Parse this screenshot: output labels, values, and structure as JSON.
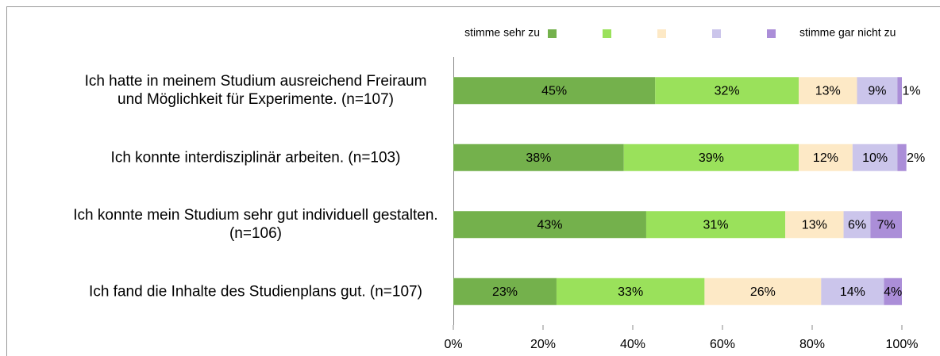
{
  "chart_data": {
    "type": "stacked_barh",
    "categories": [
      "Ich hatte in meinem Studium ausreichend Freiraum und Möglichkeit für Experimente. (n=107)",
      "Ich konnte interdisziplinär arbeiten. (n=103)",
      "Ich konnte mein Studium sehr gut individuell gestalten. (n=106)",
      "Ich fand die Inhalte des Studienplans gut. (n=107)"
    ],
    "series": [
      {
        "name": "stimme sehr zu",
        "color": "#74b14c",
        "values": [
          45,
          38,
          43,
          23
        ],
        "value_labels": [
          "45%",
          "38%",
          "43%",
          "23%"
        ]
      },
      {
        "color": "#9ae15b",
        "values": [
          32,
          39,
          31,
          33
        ],
        "value_labels": [
          "32%",
          "39%",
          "31%",
          "33%"
        ]
      },
      {
        "color": "#fde9c6",
        "values": [
          13,
          12,
          13,
          26
        ],
        "value_labels": [
          "13%",
          "12%",
          "13%",
          "26%"
        ]
      },
      {
        "color": "#cbc5eb",
        "values": [
          9,
          10,
          6,
          14
        ],
        "value_labels": [
          "9%",
          "10%",
          "6%",
          "14%"
        ]
      },
      {
        "name": "stimme gar nicht zu",
        "color": "#ab8ed8",
        "values": [
          1,
          2,
          7,
          4
        ],
        "value_labels": [
          "1%",
          "2%",
          "7%",
          "4%"
        ]
      }
    ],
    "xlim": [
      0,
      100
    ],
    "xticks": [
      {
        "value": 0,
        "label": "0%"
      },
      {
        "value": 20,
        "label": "20%"
      },
      {
        "value": 40,
        "label": "40%"
      },
      {
        "value": 60,
        "label": "60%"
      },
      {
        "value": 80,
        "label": "80%"
      },
      {
        "value": 100,
        "label": "100%"
      }
    ]
  }
}
